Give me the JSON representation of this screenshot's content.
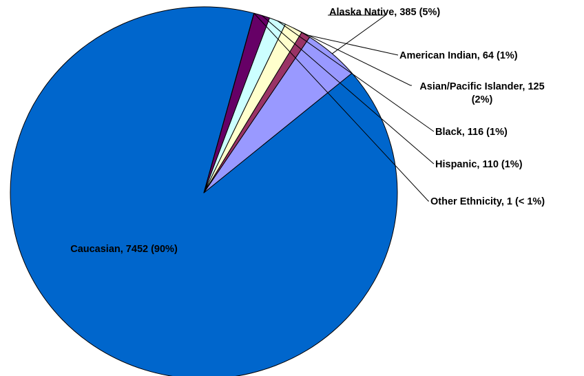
{
  "chart_data": {
    "type": "pie",
    "title": "",
    "start_angle_deg": 75,
    "direction": "counterclockwise",
    "slices": [
      {
        "name": "Caucasian",
        "value": 7452,
        "label": "Caucasian, 7452 (90%)",
        "color": "#0066CC",
        "label_inside": true
      },
      {
        "name": "Alaska Native",
        "value": 385,
        "label": "Alaska Native, 385 (5%)",
        "color": "#9999FF",
        "label_inside": false
      },
      {
        "name": "American Indian",
        "value": 64,
        "label": "American Indian, 64 (1%)",
        "color": "#993366",
        "label_inside": false
      },
      {
        "name": "Asian/Pacific Islander",
        "value": 125,
        "label": "Asian/Pacific Islander, 125 (2%)",
        "label_lines": [
          "Asian/Pacific Islander, 125",
          "(2%)"
        ],
        "color": "#FFFFCC",
        "label_inside": false
      },
      {
        "name": "Black",
        "value": 116,
        "label": "Black, 116 (1%)",
        "color": "#CCFFFF",
        "label_inside": false
      },
      {
        "name": "Hispanic",
        "value": 110,
        "label": "Hispanic, 110  (1%)",
        "color": "#660066",
        "label_inside": false
      },
      {
        "name": "Other Ethnicity",
        "value": 1,
        "label": "Other Ethnicity, 1 (< 1%)",
        "color": "#FF8080",
        "label_inside": false
      }
    ]
  }
}
